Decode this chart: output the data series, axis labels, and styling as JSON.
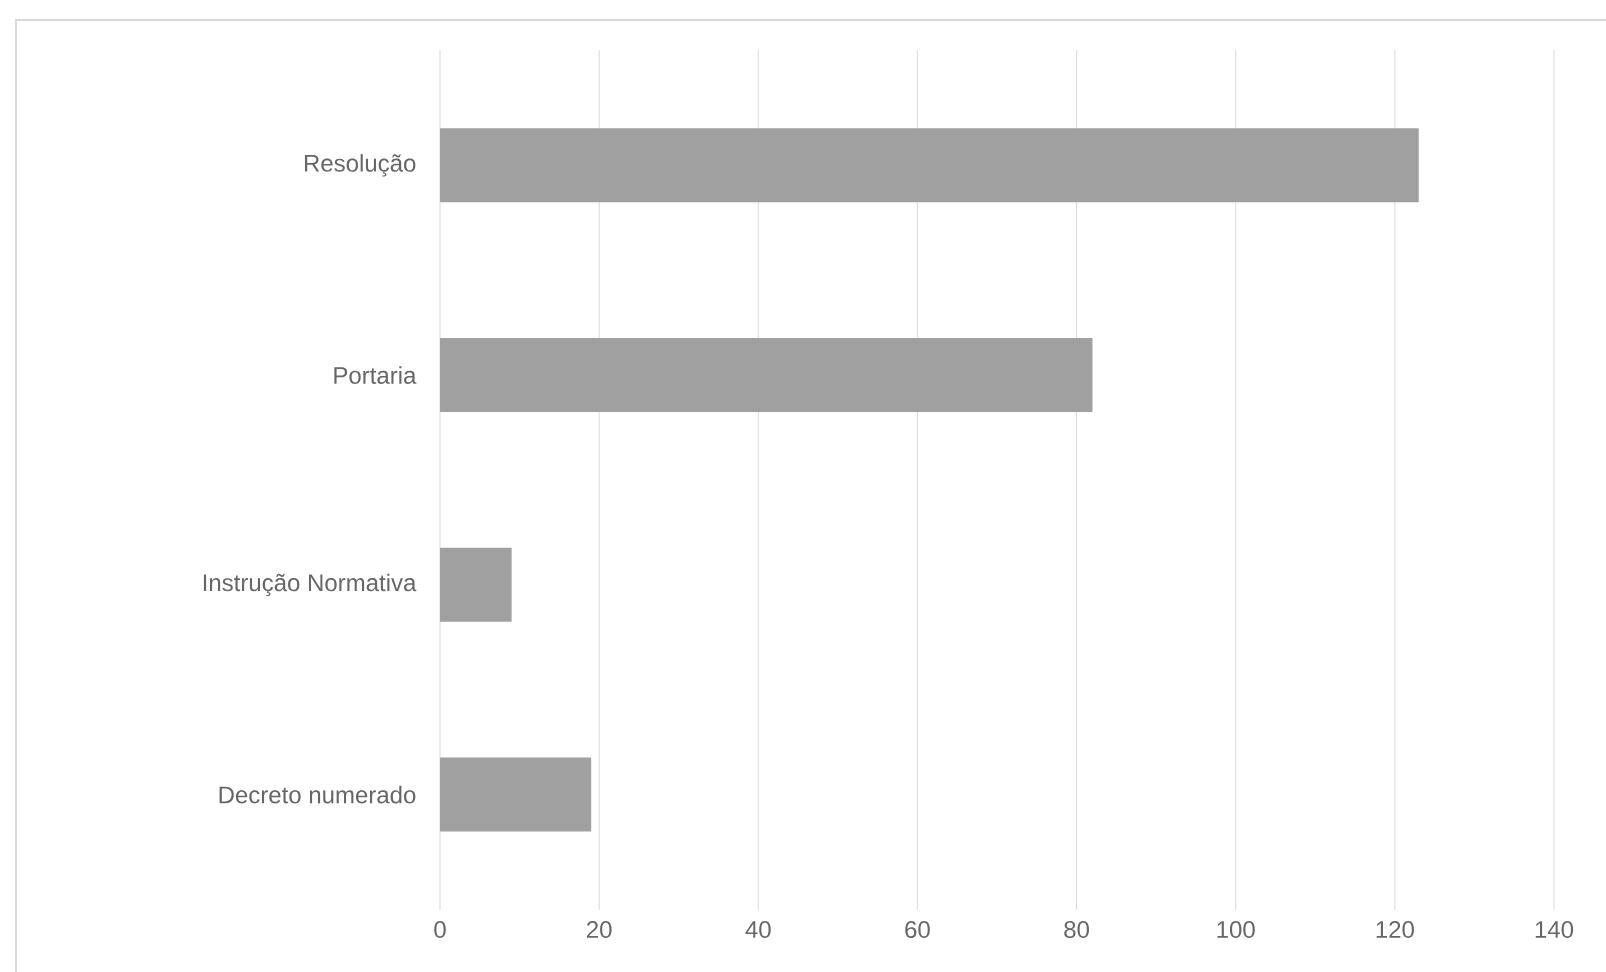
{
  "chart_data": {
    "type": "bar",
    "orientation": "horizontal",
    "categories": [
      "Resolução",
      "Portaria",
      "Instrução Normativa",
      "Decreto numerado"
    ],
    "values": [
      123,
      82,
      9,
      19
    ],
    "color": "#a0a0a0",
    "xlim": [
      0,
      140
    ],
    "xticks": [
      0,
      20,
      40,
      60,
      80,
      100,
      120,
      140
    ],
    "grid": "x"
  }
}
